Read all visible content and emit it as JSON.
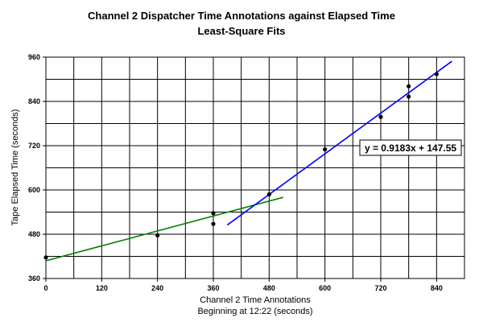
{
  "chart_data": {
    "type": "scatter",
    "title": "Channel 2 Dispatcher Time Annotations against Elapsed Time",
    "subtitle": "Least-Square Fits",
    "xlabel": "Channel 2 Time Annotations",
    "xlabel2": "Beginning at 12:22 (seconds)",
    "ylabel": "Tape Elapsed Time (seconds)",
    "xlim": [
      0,
      900
    ],
    "ylim": [
      360,
      960
    ],
    "x_ticks": [
      "0",
      "120",
      "240",
      "360",
      "480",
      "600",
      "720",
      "840"
    ],
    "y_ticks": [
      "360",
      "480",
      "600",
      "720",
      "840",
      "960"
    ],
    "grid": true,
    "points": [
      {
        "x": 0,
        "y": 417
      },
      {
        "x": 240,
        "y": 477
      },
      {
        "x": 360,
        "y": 508
      },
      {
        "x": 360,
        "y": 537
      },
      {
        "x": 480,
        "y": 588
      },
      {
        "x": 600,
        "y": 710
      },
      {
        "x": 720,
        "y": 798
      },
      {
        "x": 780,
        "y": 853
      },
      {
        "x": 780,
        "y": 881
      },
      {
        "x": 840,
        "y": 914
      }
    ],
    "fits": [
      {
        "color": "#008000",
        "x_start": 0,
        "x_end": 510,
        "y_start": 408,
        "y_end": 580
      },
      {
        "color": "#0000ff",
        "x_start": 390,
        "x_end": 873,
        "y_start": 505,
        "y_end": 949
      }
    ],
    "annotation": {
      "text": "y = 0.9183x + 147.55",
      "x": 670,
      "y": 720
    }
  }
}
